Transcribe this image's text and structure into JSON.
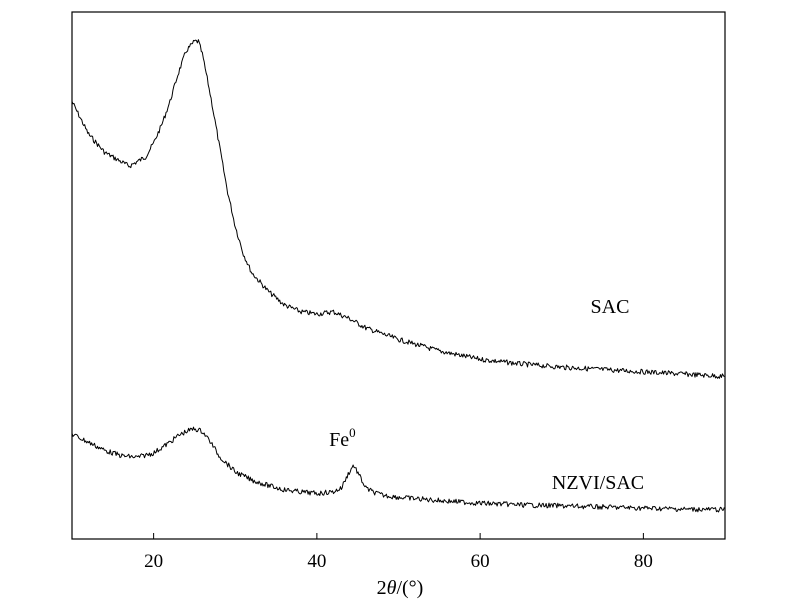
{
  "chart_data": {
    "type": "line",
    "xlabel_prefix": "2",
    "xlabel_var": "θ",
    "xlabel_suffix": "/(°)",
    "ylabel": "",
    "xlim": [
      10,
      90
    ],
    "x_ticks": [
      20,
      40,
      60,
      80
    ],
    "y_ticks_shown": false,
    "grid": false,
    "series": [
      {
        "name": "SAC",
        "x": [
          10,
          12,
          14,
          16,
          17,
          18,
          19,
          20,
          21,
          22,
          23,
          24,
          25,
          25.5,
          26,
          27,
          28,
          29,
          30,
          31,
          32,
          34,
          36,
          38,
          40,
          42,
          44,
          46,
          50,
          55,
          60,
          65,
          70,
          75,
          80,
          85,
          90
        ],
        "y": [
          0.83,
          0.76,
          0.72,
          0.7,
          0.69,
          0.7,
          0.71,
          0.74,
          0.78,
          0.83,
          0.89,
          0.94,
          0.96,
          0.96,
          0.93,
          0.84,
          0.74,
          0.64,
          0.56,
          0.5,
          0.46,
          0.42,
          0.39,
          0.375,
          0.37,
          0.375,
          0.36,
          0.34,
          0.315,
          0.29,
          0.272,
          0.262,
          0.255,
          0.25,
          0.245,
          0.24,
          0.235
        ]
      },
      {
        "name": "NZVI/SAC",
        "x": [
          10,
          12,
          14,
          16,
          18,
          20,
          22,
          23,
          24,
          25,
          26,
          27,
          28,
          30,
          32,
          34,
          36,
          38,
          40,
          42,
          43,
          43.8,
          44.5,
          45.2,
          46,
          47,
          48,
          50,
          55,
          60,
          65,
          70,
          75,
          80,
          85,
          90
        ],
        "y": [
          0.135,
          0.12,
          0.105,
          0.095,
          0.092,
          0.1,
          0.12,
          0.132,
          0.14,
          0.145,
          0.14,
          0.12,
          0.095,
          0.065,
          0.05,
          0.04,
          0.032,
          0.028,
          0.025,
          0.028,
          0.035,
          0.06,
          0.078,
          0.058,
          0.035,
          0.027,
          0.022,
          0.018,
          0.012,
          0.007,
          0.004,
          0.002,
          0.0,
          -0.002,
          -0.004,
          -0.005
        ]
      }
    ],
    "annotations": [
      {
        "text": "Fe",
        "sup": "0",
        "x": 44.6
      }
    ]
  }
}
